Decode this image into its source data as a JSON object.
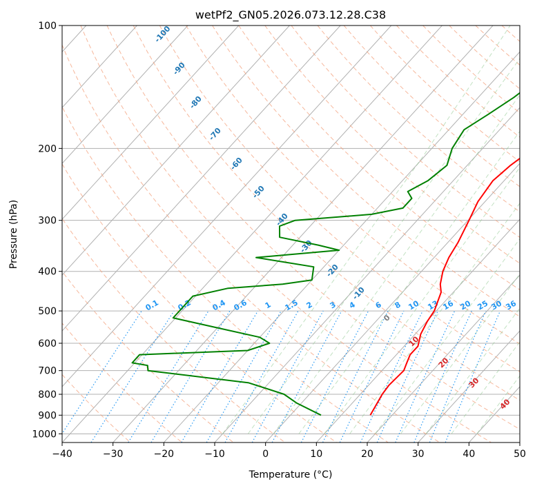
{
  "chart_data": {
    "type": "line",
    "title": "wetPf2_GN05.2026.073.12.28.C38",
    "xlabel": "Temperature (°C)",
    "ylabel": "Pressure (hPa)",
    "xlim": [
      -40,
      50
    ],
    "ylim": [
      1050,
      100
    ],
    "y_scale": "log",
    "grid": true,
    "x_ticks": [
      "−40",
      "−30",
      "−20",
      "−10",
      "0",
      "10",
      "20",
      "30",
      "40",
      "50"
    ],
    "y_ticks": [
      "100",
      "200",
      "300",
      "400",
      "500",
      "600",
      "700",
      "800",
      "900",
      "1000"
    ],
    "skew_t": true,
    "series": [
      {
        "color": "#ff0000",
        "points": [
          [
            900,
            15.7
          ],
          [
            870,
            15.3
          ],
          [
            800,
            14.3
          ],
          [
            760,
            14.0
          ],
          [
            700,
            14.3
          ],
          [
            670,
            13.5
          ],
          [
            640,
            12.7
          ],
          [
            610,
            12.7
          ],
          [
            570,
            11.1
          ],
          [
            530,
            10.1
          ],
          [
            500,
            9.6
          ],
          [
            450,
            7.6
          ],
          [
            430,
            6.0
          ],
          [
            400,
            4.2
          ],
          [
            370,
            2.9
          ],
          [
            340,
            2.0
          ],
          [
            300,
            0.2
          ],
          [
            270,
            -1.4
          ],
          [
            240,
            -2.2
          ],
          [
            220,
            -1.5
          ],
          [
            200,
            0.0
          ],
          [
            180,
            2.8
          ],
          [
            160,
            6.3
          ],
          [
            140,
            10.2
          ],
          [
            130,
            11.8
          ],
          [
            120,
            13.0
          ],
          [
            110,
            15.0
          ],
          [
            100,
            18.0
          ]
        ]
      },
      {
        "color": "#008000",
        "points": [
          [
            900,
            6.0
          ],
          [
            840,
            -1.0
          ],
          [
            800,
            -5.0
          ],
          [
            750,
            -14.0
          ],
          [
            700,
            -36.0
          ],
          [
            680,
            -37.0
          ],
          [
            670,
            -40.5
          ],
          [
            640,
            -40.5
          ],
          [
            625,
            -20.0
          ],
          [
            600,
            -17.0
          ],
          [
            580,
            -20.0
          ],
          [
            550,
            -30.0
          ],
          [
            520,
            -40.5
          ],
          [
            460,
            -40.5
          ],
          [
            440,
            -35.0
          ],
          [
            430,
            -25.0
          ],
          [
            420,
            -20.0
          ],
          [
            390,
            -22.0
          ],
          [
            370,
            -35.0
          ],
          [
            355,
            -20.0
          ],
          [
            345,
            -25.0
          ],
          [
            330,
            -34.0
          ],
          [
            310,
            -36.0
          ],
          [
            300,
            -34.0
          ],
          [
            290,
            -20.0
          ],
          [
            280,
            -15.0
          ],
          [
            265,
            -15.0
          ],
          [
            255,
            -17.0
          ],
          [
            240,
            -15.0
          ],
          [
            220,
            -14.0
          ],
          [
            200,
            -16.0
          ],
          [
            180,
            -17.0
          ],
          [
            165,
            -15.0
          ],
          [
            150,
            -13.0
          ],
          [
            130,
            -11.0
          ],
          [
            115,
            -8.0
          ],
          [
            100,
            -5.0
          ]
        ]
      }
    ],
    "dry_adiabat_labels": [
      "-100",
      "-90",
      "-80",
      "-70",
      "-60",
      "-50",
      "-40",
      "-30",
      "-20",
      "-10"
    ],
    "mixing_ratio_labels": [
      "0.1",
      "0.2",
      "0.4",
      "0.6",
      "1",
      "1.5",
      "2",
      "3",
      "4",
      "6",
      "8",
      "10",
      "13",
      "16",
      "20",
      "25",
      "30",
      "36"
    ],
    "moist_adiabat_labels": [
      "0",
      "10",
      "20",
      "30",
      "40"
    ]
  }
}
